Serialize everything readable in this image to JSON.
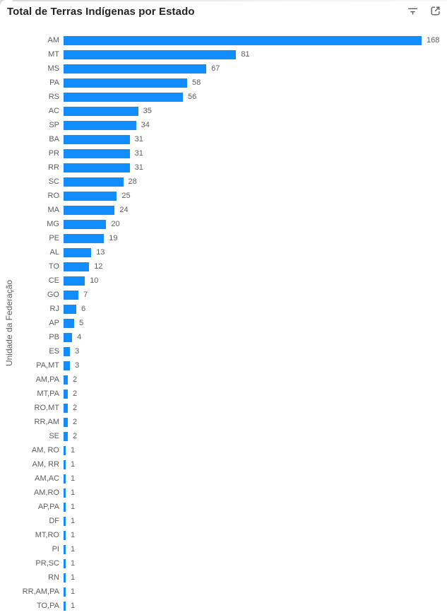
{
  "header": {
    "title": "Total de Terras Indígenas por Estado",
    "filter_icon": "filter-icon",
    "focus_icon": "focus-mode-icon"
  },
  "colors": {
    "bar": "#118DFF",
    "axis_text": "#605E5C",
    "title_text": "#252423",
    "background": "#FFFFFF"
  },
  "chart_data": {
    "type": "bar",
    "orientation": "horizontal",
    "title": "Total de Terras Indígenas por Estado",
    "xlabel": "",
    "ylabel": "Unidade da Federação",
    "xlim": [
      0,
      168
    ],
    "grid": false,
    "legend": "none",
    "data_labels": true,
    "bar_color": "#118DFF",
    "categories": [
      "AM",
      "MT",
      "MS",
      "PA",
      "RS",
      "AC",
      "SP",
      "BA",
      "PR",
      "RR",
      "SC",
      "RO",
      "MA",
      "MG",
      "PE",
      "AL",
      "TO",
      "CE",
      "GO",
      "RJ",
      "AP",
      "PB",
      "ES",
      "PA,MT",
      "AM,PA",
      "MT,PA",
      "RO,MT",
      "RR,AM",
      "SE",
      "AM, RO",
      "AM, RR",
      "AM,AC",
      "AM,RO",
      "AP,PA",
      "DF",
      "MT,RO",
      "PI",
      "PR,SC",
      "RN",
      "RR,AM,PA",
      "TO,PA"
    ],
    "values": [
      168,
      81,
      67,
      58,
      56,
      35,
      34,
      31,
      31,
      31,
      28,
      25,
      24,
      20,
      19,
      13,
      12,
      10,
      7,
      6,
      5,
      4,
      3,
      3,
      2,
      2,
      2,
      2,
      2,
      1,
      1,
      1,
      1,
      1,
      1,
      1,
      1,
      1,
      1,
      1,
      1
    ]
  }
}
